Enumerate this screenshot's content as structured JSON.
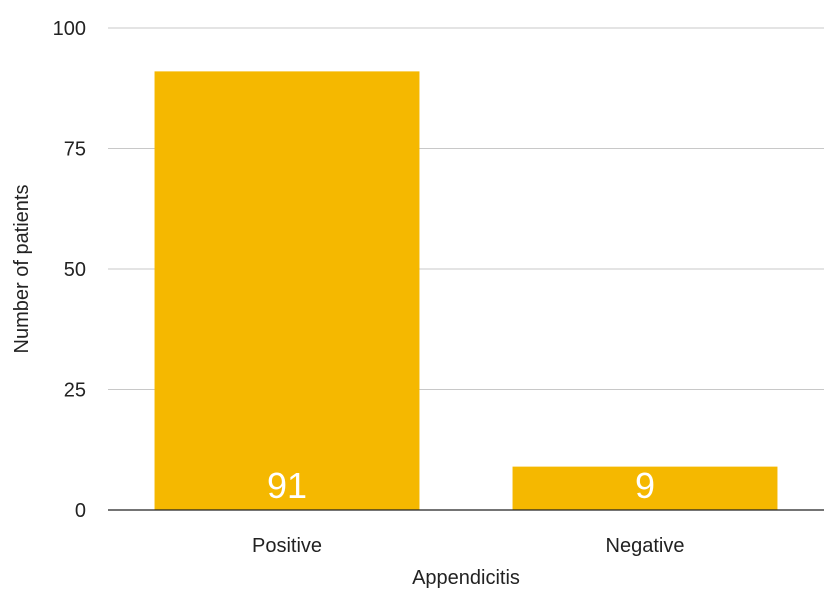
{
  "chart_data": {
    "type": "bar",
    "categories": [
      "Positive",
      "Negative"
    ],
    "values": [
      91,
      9
    ],
    "data_labels": [
      "91",
      "9"
    ],
    "xlabel": "Appendicitis",
    "ylabel": "Number of patients",
    "ylim": [
      0,
      100
    ],
    "yticks": [
      "0",
      "25",
      "50",
      "75",
      "100"
    ],
    "grid": true,
    "legend": "none",
    "bar_color": "#F5B800",
    "data_label_color": "#FFFFFF",
    "grid_color": "#C8C8C8"
  }
}
